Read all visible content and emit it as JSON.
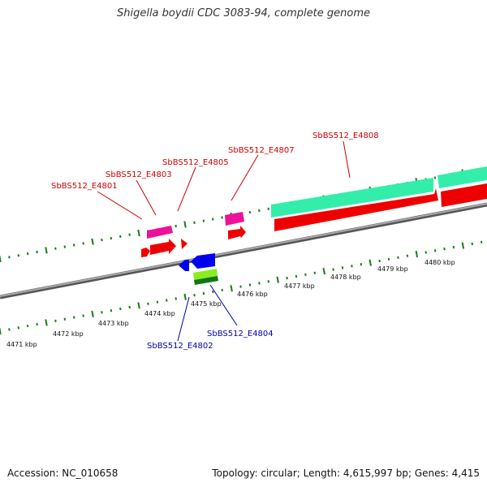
{
  "title": "Shigella boydii CDC 3083-94, complete genome",
  "footer": {
    "accession": "Accession: NC_010658",
    "summary": "Topology: circular; Length: 4,615,997 bp; Genes: 4,415"
  },
  "colors": {
    "backbone": "#888888",
    "tick": "#1a7a1a",
    "forward_label": "#cc0000",
    "reverse_label": "#0000aa",
    "red_gene": "#ee0000",
    "magenta_gene": "#ee1199",
    "teal_gene": "#33eeaa",
    "blue_gene": "#0000ee",
    "lime_gene": "#88ee22",
    "darkgreen_gene": "#117711"
  },
  "kbp_labels": [
    "4471 kbp",
    "4472 kbp",
    "4473 kbp",
    "4474 kbp",
    "4475 kbp",
    "4476 kbp",
    "4477 kbp",
    "4478 kbp",
    "4479 kbp",
    "4480 kbp"
  ],
  "forward_gene_labels": [
    "SbBS512_E4801",
    "SbBS512_E4803",
    "SbBS512_E4805",
    "SbBS512_E4807",
    "SbBS512_E4808"
  ],
  "reverse_gene_labels": [
    "SbBS512_E4802",
    "SbBS512_E4804"
  ]
}
